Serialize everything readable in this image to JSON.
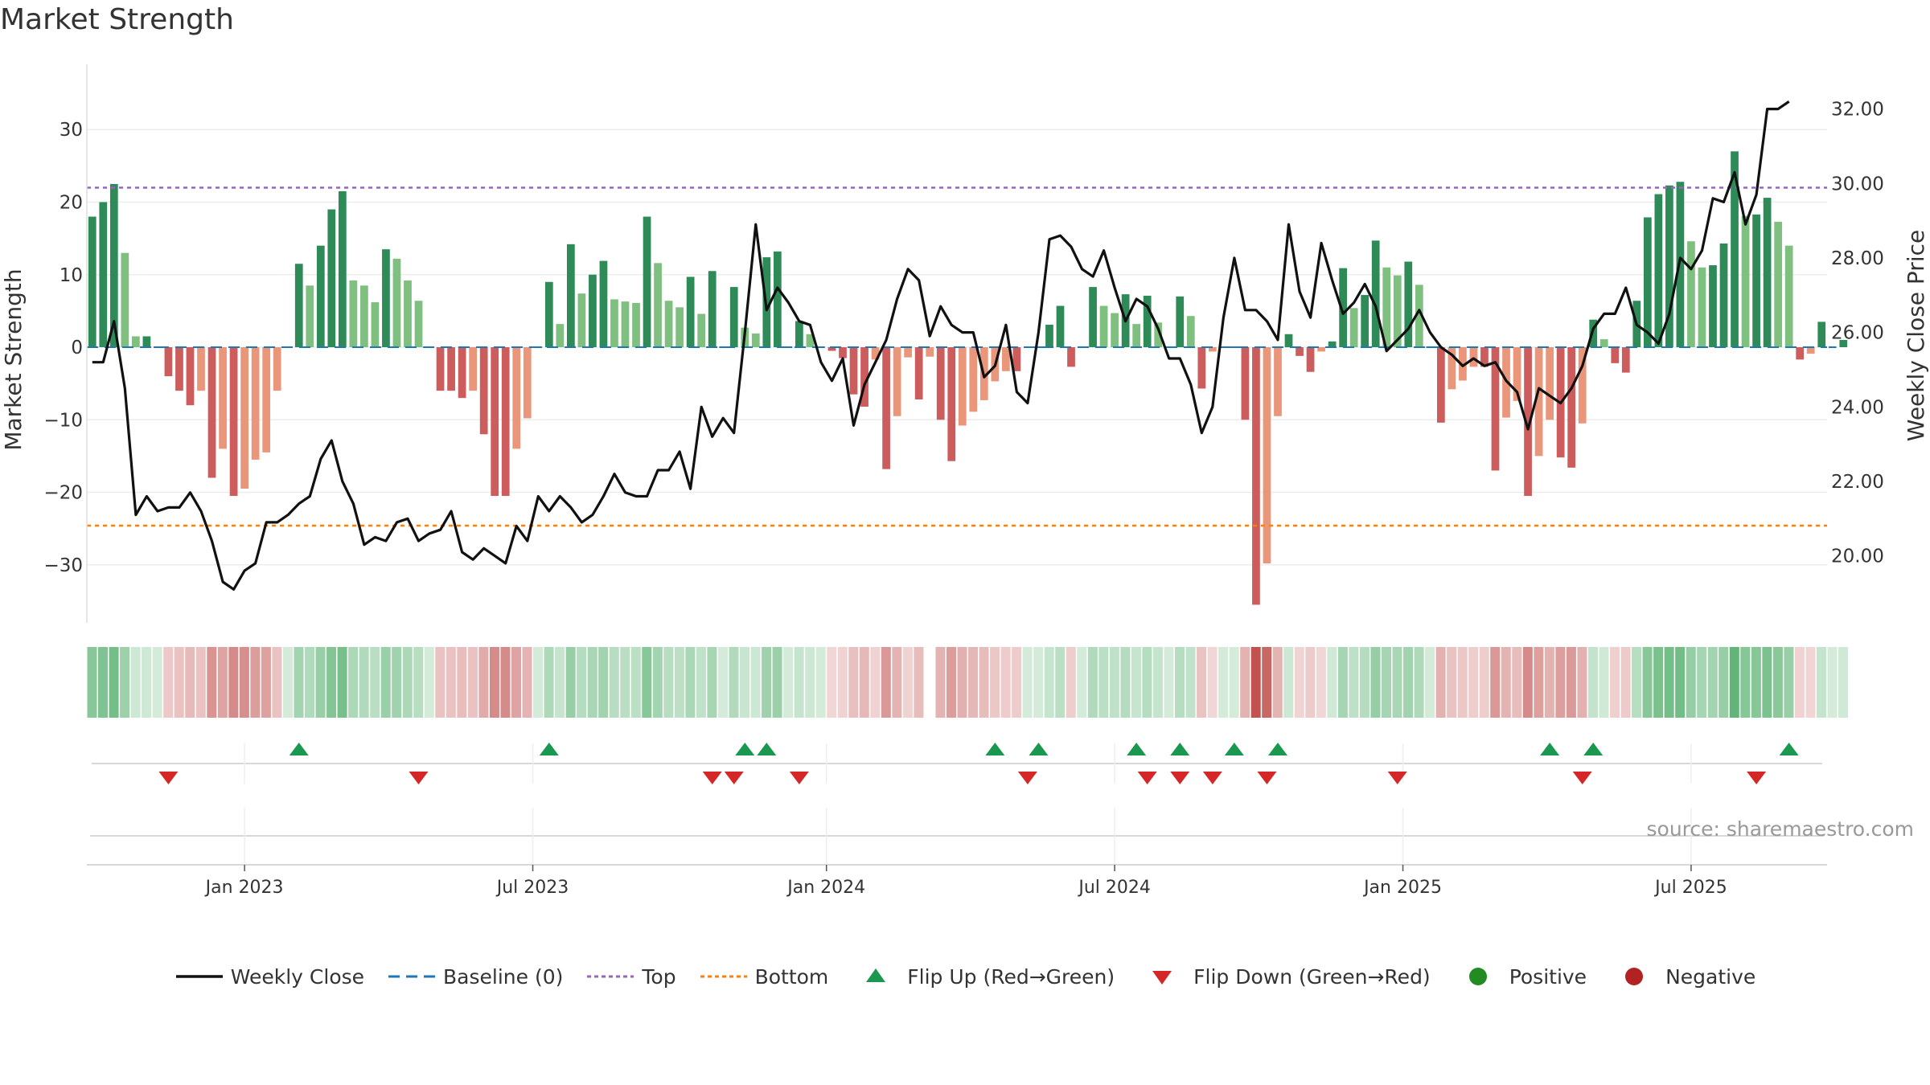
{
  "title": "Market Strength",
  "source": "source: sharemaestro.com",
  "colors": {
    "pos_strong": "#2e8b57",
    "pos_weak": "#7fbf7f",
    "neg_strong": "#cd5c5c",
    "neg_weak": "#e9967a",
    "line": "#111111",
    "baseline": "#1f77b4",
    "top": "#9467bd",
    "bottom": "#ff7f0e",
    "flip_up": "#1a9850",
    "flip_down": "#d62728",
    "positive": "#228b22",
    "negative": "#b22222"
  },
  "legend": [
    {
      "key": "close",
      "label": "Weekly Close"
    },
    {
      "key": "baseline",
      "label": "Baseline (0)"
    },
    {
      "key": "top",
      "label": "Top"
    },
    {
      "key": "bottom",
      "label": "Bottom"
    },
    {
      "key": "flip_up",
      "label": "Flip Up (Red→Green)"
    },
    {
      "key": "flip_down",
      "label": "Flip Down (Green→Red)"
    },
    {
      "key": "positive",
      "label": "Positive"
    },
    {
      "key": "negative",
      "label": "Negative"
    }
  ],
  "chart_data": {
    "type": "bar",
    "ylabel": "Market Strength",
    "y2label": "Weekly Close Price",
    "ylim": [
      -38,
      39
    ],
    "y2lim": [
      18.2,
      33.2
    ],
    "yticks": [
      30,
      20,
      10,
      0,
      -10,
      -20,
      -30
    ],
    "ytick_labels": [
      "30",
      "20",
      "10",
      "0",
      "−10",
      "−20",
      "−30"
    ],
    "y2ticks": [
      32,
      30,
      28,
      26,
      24,
      22,
      20
    ],
    "y2tick_labels": [
      "32.00",
      "30.00",
      "28.00",
      "26.00",
      "24.00",
      "22.00",
      "20.00"
    ],
    "x_start": "2022-09-26",
    "x_range_weeks": [
      -0.5,
      159.5
    ],
    "xticks": [
      {
        "label": "Jan 2023",
        "week": 14
      },
      {
        "label": "Jul 2023",
        "week": 40.5
      },
      {
        "label": "Jan 2024",
        "week": 67.5
      },
      {
        "label": "Jul 2024",
        "week": 94
      },
      {
        "label": "Jan 2025",
        "week": 120.5
      },
      {
        "label": "Jul 2025",
        "week": 147
      }
    ],
    "top_line": 22,
    "bottom_line": -24.6,
    "strength": [
      18,
      20,
      22.5,
      13,
      1.5,
      1.5,
      0,
      -4,
      -6,
      -8,
      -6,
      -18,
      -14,
      -20.5,
      -19.5,
      -15.5,
      -14.5,
      -6,
      0,
      11.5,
      8.5,
      14,
      19,
      21.5,
      9.2,
      8.5,
      6.2,
      13.5,
      12.2,
      9.2,
      6.4,
      0,
      -6,
      -6,
      -7,
      -6,
      -12,
      -20.5,
      -20.5,
      -14,
      -9.8,
      0,
      9,
      3.2,
      14.2,
      7.4,
      10,
      11.9,
      6.6,
      6.3,
      6.1,
      18,
      11.6,
      6.4,
      5.5,
      9.7,
      4.6,
      10.5,
      0,
      8.3,
      2.7,
      1.9,
      12.4,
      13.2,
      0,
      3.6,
      1.8,
      0,
      -0.5,
      -1.5,
      -6.5,
      -8.2,
      -1.7,
      -16.8,
      -9.5,
      -1.4,
      -7.2,
      -1.3,
      -10,
      -15.7,
      -10.8,
      -8.9,
      -7.3,
      -4.7,
      -3.3,
      -3.3,
      0,
      0,
      3.1,
      5.7,
      -2.7,
      0,
      8.3,
      5.7,
      4.7,
      7.3,
      3.2,
      7.1,
      3.4,
      0,
      7,
      4.3,
      -5.7,
      -0.6,
      0,
      0,
      -10,
      -35.5,
      -29.8,
      -9.5,
      1.8,
      -1.2,
      -3.4,
      -0.6,
      0.8,
      10.9,
      5.4,
      7.2,
      14.7,
      11,
      9.9,
      11.8,
      8.6,
      0,
      -10.4,
      -5.8,
      -4.6,
      -2.7,
      -2.7,
      -17,
      -9.7,
      -7.4,
      -20.5,
      -15,
      -10,
      -15.2,
      -16.6,
      -10.5,
      3.8,
      1.1,
      -2.2,
      -3.5,
      6.4,
      17.9,
      21.1,
      22.3,
      22.8,
      14.6,
      11,
      11.3,
      14.3,
      27,
      18.1,
      18.3,
      20.6,
      17.3,
      14,
      -1.7,
      -0.9,
      3.5,
      0,
      1
    ],
    "close": [
      25.2,
      25.2,
      26.3,
      24.5,
      21.1,
      21.6,
      21.2,
      21.3,
      21.3,
      21.7,
      21.2,
      20.4,
      19.3,
      19.1,
      19.6,
      19.8,
      20.9,
      20.9,
      21.1,
      21.4,
      21.6,
      22.6,
      23.1,
      22.0,
      21.4,
      20.3,
      20.5,
      20.4,
      20.9,
      21.0,
      20.4,
      20.6,
      20.7,
      21.2,
      20.1,
      19.9,
      20.2,
      20.0,
      19.8,
      20.8,
      20.4,
      21.6,
      21.2,
      21.6,
      21.3,
      20.9,
      21.1,
      21.6,
      22.2,
      21.7,
      21.6,
      21.6,
      22.3,
      22.3,
      22.8,
      21.8,
      24.0,
      23.2,
      23.7,
      23.3,
      26.0,
      28.9,
      26.6,
      27.2,
      26.8,
      26.3,
      26.2,
      25.2,
      24.7,
      25.3,
      23.5,
      24.6,
      25.2,
      25.8,
      26.9,
      27.7,
      27.4,
      25.9,
      26.7,
      26.2,
      26.0,
      26.0,
      24.8,
      25.1,
      26.2,
      24.4,
      24.1,
      26.0,
      28.5,
      28.6,
      28.3,
      27.7,
      27.5,
      28.2,
      27.2,
      26.3,
      26.9,
      26.7,
      26.1,
      25.3,
      25.3,
      24.6,
      23.3,
      24.0,
      26.4,
      28.0,
      26.6,
      26.6,
      26.3,
      25.8,
      28.9,
      27.1,
      26.4,
      28.4,
      27.4,
      26.5,
      26.8,
      27.3,
      26.7,
      25.5,
      25.8,
      26.1,
      26.6,
      26.0,
      25.6,
      25.4,
      25.1,
      25.3,
      25.1,
      25.2,
      24.7,
      24.4,
      23.4,
      24.5,
      24.3,
      24.1,
      24.5,
      25.1,
      26.1,
      26.5,
      26.5,
      27.2,
      26.2,
      26.0,
      25.7,
      26.5,
      28.0,
      27.7,
      28.2,
      29.6,
      29.5,
      30.3,
      28.9,
      29.7,
      32.0,
      32.0,
      32.2
    ],
    "flip_up": [
      19,
      42,
      60,
      62,
      83,
      87,
      96,
      100,
      105,
      109,
      134,
      138,
      156
    ],
    "flip_down": [
      7,
      30,
      57,
      59,
      65,
      86,
      97,
      100,
      103,
      108,
      120,
      137,
      153
    ],
    "strip_gap_week": 77
  }
}
